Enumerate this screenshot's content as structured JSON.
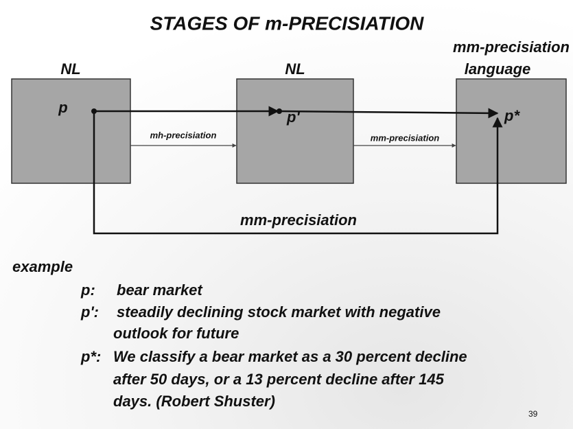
{
  "title": "STAGES OF m-PRECISIATION",
  "boxes": [
    {
      "label": [
        "NL"
      ],
      "node": "p"
    },
    {
      "label": [
        "NL"
      ],
      "node": "p'"
    },
    {
      "label": [
        "mm-precisiation",
        "language"
      ],
      "node": "p*"
    }
  ],
  "edges": [
    "mh-precisiation",
    "mm-precisiation",
    "mm-precisiation"
  ],
  "example": {
    "heading": "example",
    "items": [
      {
        "key": "p:",
        "lines": [
          "bear market"
        ]
      },
      {
        "key": "p':",
        "lines": [
          "steadily declining stock market with negative",
          "outlook for future"
        ]
      },
      {
        "key": "p*:",
        "lines": [
          "We classify a bear market as a 30 percent decline",
          "after 50 days, or a 13 percent decline after 145",
          "days. (Robert Shuster)"
        ]
      }
    ]
  },
  "page_number": "39"
}
